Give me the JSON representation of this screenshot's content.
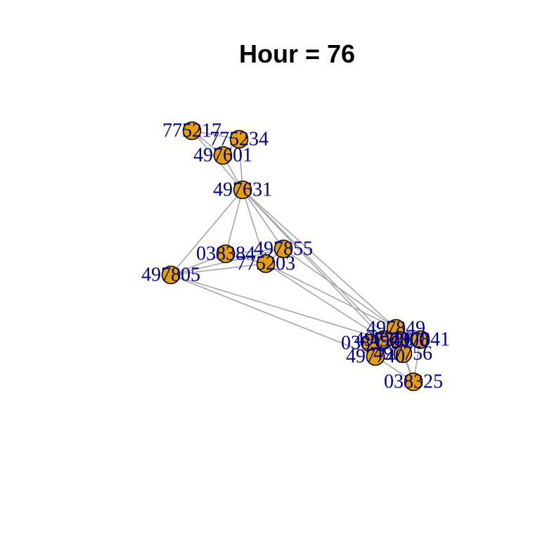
{
  "title": "Hour = 76",
  "colors": {
    "node_fill": "#E69F00",
    "node_stroke": "#000000",
    "edge": "#A6A6A6",
    "label": "#00008B"
  },
  "nodes": [
    {
      "id": "775217",
      "label": "775217"
    },
    {
      "id": "775234",
      "label": "775234"
    },
    {
      "id": "497601",
      "label": "497601"
    },
    {
      "id": "497631",
      "label": "497631"
    },
    {
      "id": "038384",
      "label": "038384"
    },
    {
      "id": "497855",
      "label": "497855"
    },
    {
      "id": "775203",
      "label": "775203"
    },
    {
      "id": "497805",
      "label": "497805"
    },
    {
      "id": "497849",
      "label": "497849"
    },
    {
      "id": "497841",
      "label": "497841"
    },
    {
      "id": "038350",
      "label": "038350"
    },
    {
      "id": "497780",
      "label": "497780"
    },
    {
      "id": "497800",
      "label": "497800"
    },
    {
      "id": "497756",
      "label": "497756"
    },
    {
      "id": "497740",
      "label": "497740"
    },
    {
      "id": "038325",
      "label": "038325"
    }
  ],
  "edges": [
    [
      "775217",
      "775234"
    ],
    [
      "775217",
      "497601"
    ],
    [
      "775217",
      "497631"
    ],
    [
      "775234",
      "497601"
    ],
    [
      "775234",
      "497631"
    ],
    [
      "497601",
      "497631"
    ],
    [
      "497631",
      "038384"
    ],
    [
      "497631",
      "497855"
    ],
    [
      "497631",
      "775203"
    ],
    [
      "497631",
      "497805"
    ],
    [
      "497631",
      "497849"
    ],
    [
      "497631",
      "497780"
    ],
    [
      "497631",
      "497756"
    ],
    [
      "038384",
      "497805"
    ],
    [
      "038384",
      "775203"
    ],
    [
      "038384",
      "497855"
    ],
    [
      "497855",
      "775203"
    ],
    [
      "497855",
      "497805"
    ],
    [
      "497855",
      "497849"
    ],
    [
      "775203",
      "497805"
    ],
    [
      "775203",
      "497780"
    ],
    [
      "775203",
      "497849"
    ],
    [
      "497805",
      "497780"
    ],
    [
      "497805",
      "497740"
    ],
    [
      "497849",
      "497841"
    ],
    [
      "497849",
      "497780"
    ],
    [
      "497849",
      "497800"
    ],
    [
      "497849",
      "497756"
    ],
    [
      "497849",
      "038325"
    ],
    [
      "497841",
      "497756"
    ],
    [
      "497841",
      "038325"
    ],
    [
      "497841",
      "497800"
    ],
    [
      "038350",
      "497780"
    ],
    [
      "038350",
      "497740"
    ],
    [
      "038350",
      "497756"
    ],
    [
      "497780",
      "497800"
    ],
    [
      "497780",
      "497740"
    ],
    [
      "497780",
      "497756"
    ],
    [
      "497800",
      "497756"
    ],
    [
      "497800",
      "038325"
    ],
    [
      "497756",
      "038325"
    ],
    [
      "497740",
      "038325"
    ],
    [
      "497740",
      "497756"
    ]
  ]
}
